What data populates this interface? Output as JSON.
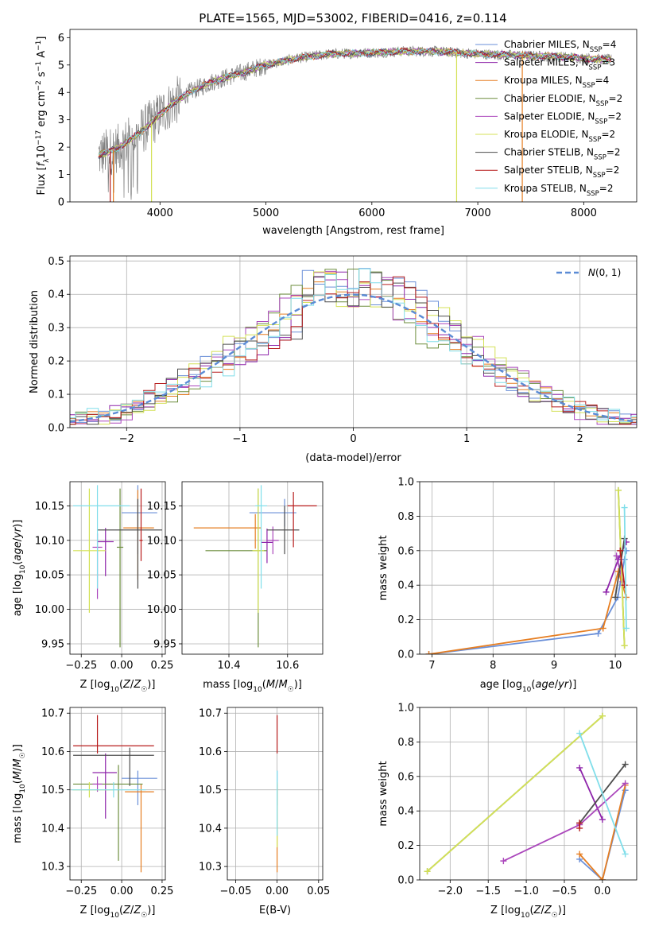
{
  "figure": {
    "title": "PLATE=1565, MJD=53002, FIBERID=0416, z=0.114"
  },
  "models": [
    {
      "name": "Chabrier MILES",
      "nssp": "4",
      "color": "#6a8fd8"
    },
    {
      "name": "Salpeter MILES",
      "nssp": "3",
      "color": "#8e24aa"
    },
    {
      "name": "Kroupa MILES",
      "nssp": "4",
      "color": "#e67e22"
    },
    {
      "name": "Chabrier ELODIE",
      "nssp": "2",
      "color": "#6d8e3e"
    },
    {
      "name": "Salpeter ELODIE",
      "nssp": "2",
      "color": "#ab47bc"
    },
    {
      "name": "Kroupa ELODIE",
      "nssp": "2",
      "color": "#d4e157"
    },
    {
      "name": "Chabrier STELIB",
      "nssp": "2",
      "color": "#4d4d4d"
    },
    {
      "name": "Salpeter STELIB",
      "nssp": "2",
      "color": "#b71c1c"
    },
    {
      "name": "Kroupa STELIB",
      "nssp": "2",
      "color": "#80deea"
    }
  ],
  "chart_data": [
    {
      "id": "spectrum",
      "type": "line",
      "title": "PLATE=1565, MJD=53002, FIBERID=0416, z=0.114",
      "xlabel": "wavelength [Angstrom, rest frame]",
      "ylabel": "Flux [f_λ10^-17 erg cm^-2 s^-1 A^-1]",
      "xlim": [
        3150,
        8500
      ],
      "ylim": [
        0,
        6.3
      ],
      "xticks": [
        4000,
        5000,
        6000,
        7000,
        8000
      ],
      "yticks": [
        0,
        1,
        2,
        3,
        4,
        5,
        6
      ],
      "grid": false,
      "legend": "top-right",
      "data_color": "#808080",
      "data_range": [
        3420,
        8260
      ],
      "model_curve": {
        "x": [
          3420,
          3600,
          3800,
          3950,
          4100,
          4300,
          4500,
          4800,
          5000,
          5300,
          5600,
          6000,
          6300,
          6600,
          7000,
          7400,
          7800,
          8200
        ],
        "y": [
          1.7,
          1.95,
          2.5,
          3.0,
          3.55,
          4.05,
          4.4,
          4.75,
          5.0,
          5.25,
          5.4,
          5.45,
          5.5,
          5.5,
          5.4,
          5.35,
          5.3,
          5.2
        ]
      },
      "notable_drops": [
        {
          "x": 3530,
          "model": "Salpeter STELIB"
        },
        {
          "x": 3560,
          "model": "Kroupa MILES"
        },
        {
          "x": 3920,
          "model": "Kroupa ELODIE"
        },
        {
          "x": 6800,
          "model": "Kroupa ELODIE"
        },
        {
          "x": 7420,
          "model": "Kroupa MILES"
        }
      ]
    },
    {
      "id": "residuals",
      "type": "line",
      "xlabel": "(data-model)/error",
      "ylabel": "Normed distribution",
      "xlim": [
        -2.5,
        2.5
      ],
      "ylim": [
        0,
        0.515
      ],
      "xticks": [
        -2,
        -1,
        0,
        1,
        2
      ],
      "yticks": [
        0.0,
        0.1,
        0.2,
        0.3,
        0.4,
        0.5
      ],
      "grid": true,
      "legend": "top-right",
      "reference": {
        "name": "N(0,1)",
        "color": "#5b8bd5",
        "style": "dashed"
      },
      "bin_width": 0.1
    },
    {
      "id": "age-vs-Z",
      "type": "scatter",
      "xlabel": "Z [log10(Z/Z☉)]",
      "ylabel": "age [log10(age/yr)]",
      "xlim": [
        -0.32,
        0.27
      ],
      "ylim": [
        9.935,
        10.185
      ],
      "xticks": [
        -0.25,
        0.0,
        0.25
      ],
      "xtick_labels": [
        "−0.25",
        "0.00",
        "0.25"
      ],
      "yticks": [
        9.95,
        10.0,
        10.05,
        10.1,
        10.15
      ],
      "grid": true,
      "points": [
        {
          "model": "Chabrier MILES",
          "x": 0.1,
          "xerr": [
            0.1,
            0.12
          ],
          "y": 10.14,
          "yerr": [
            0.06,
            0.04
          ]
        },
        {
          "model": "Salpeter MILES",
          "x": -0.1,
          "xerr": [
            0.05,
            0.05
          ],
          "y": 10.098,
          "yerr": [
            0.05,
            0.02
          ]
        },
        {
          "model": "Kroupa MILES",
          "x": 0.1,
          "xerr": [
            0.09,
            0.1
          ],
          "y": 10.118,
          "yerr": [
            0.075,
            0.055
          ]
        },
        {
          "model": "Chabrier ELODIE",
          "x": -0.01,
          "xerr": [
            0.02,
            0.02
          ],
          "y": 10.09,
          "yerr": [
            0.145,
            0.085
          ]
        },
        {
          "model": "Salpeter ELODIE",
          "x": -0.15,
          "xerr": [
            0.03,
            0.03
          ],
          "y": 10.09,
          "yerr": [
            0.075,
            0.02
          ]
        },
        {
          "model": "Kroupa ELODIE",
          "x": -0.2,
          "xerr": [
            0.1,
            0.1
          ],
          "y": 10.085,
          "yerr": [
            0.09,
            0.09
          ]
        },
        {
          "model": "Chabrier STELIB",
          "x": 0.1,
          "xerr": [
            0.25,
            0.15
          ],
          "y": 10.115,
          "yerr": [
            0.085,
            0.045
          ]
        },
        {
          "model": "Salpeter STELIB",
          "x": 0.12,
          "xerr": [
            0.01,
            0.01
          ],
          "y": 10.1,
          "yerr": [
            0.03,
            0.075
          ]
        },
        {
          "model": "Kroupa STELIB",
          "x": -0.15,
          "xerr": [
            0.15,
            0.2
          ],
          "y": 10.15,
          "yerr": [
            0.12,
            0.03
          ]
        }
      ]
    },
    {
      "id": "age-vs-mass",
      "type": "scatter",
      "xlabel": "mass [log10(M/M☉)]",
      "ylabel": "",
      "xlim": [
        10.24,
        10.72
      ],
      "ylim": [
        9.935,
        10.185
      ],
      "xticks": [
        10.4,
        10.6
      ],
      "yticks": [
        9.95,
        10.0,
        10.05,
        10.1,
        10.15
      ],
      "grid": true,
      "points": [
        {
          "model": "Chabrier MILES",
          "x": 10.59,
          "xerr": [
            0.12,
            0.04
          ],
          "y": 10.14,
          "yerr": [
            0.02,
            0.02
          ]
        },
        {
          "model": "Salpeter MILES",
          "x": 10.53,
          "xerr": [
            0.02,
            0.02
          ],
          "y": 10.097,
          "yerr": [
            0.03,
            0.02
          ]
        },
        {
          "model": "Kroupa MILES",
          "x": 10.49,
          "xerr": [
            0.21,
            0.02
          ],
          "y": 10.118,
          "yerr": [
            0.03,
            0.02
          ]
        },
        {
          "model": "Chabrier ELODIE",
          "x": 10.5,
          "xerr": [
            0.18,
            0.03
          ],
          "y": 10.085,
          "yerr": [
            0.14,
            0.09
          ]
        },
        {
          "model": "Salpeter ELODIE",
          "x": 10.55,
          "xerr": [
            0.02,
            0.02
          ],
          "y": 10.1,
          "yerr": [
            0.02,
            0.02
          ]
        },
        {
          "model": "Kroupa ELODIE",
          "x": 10.5,
          "xerr": [
            0.02,
            0.02
          ],
          "y": 10.085,
          "yerr": [
            0.09,
            0.09
          ]
        },
        {
          "model": "Chabrier STELIB",
          "x": 10.59,
          "xerr": [
            0.06,
            0.05
          ],
          "y": 10.115,
          "yerr": [
            0.035,
            0.035
          ]
        },
        {
          "model": "Salpeter STELIB",
          "x": 10.62,
          "xerr": [
            0.02,
            0.08
          ],
          "y": 10.15,
          "yerr": [
            0.06,
            0.02
          ]
        },
        {
          "model": "Kroupa STELIB",
          "x": 10.51,
          "xerr": [
            0.02,
            0.02
          ],
          "y": 10.15,
          "yerr": [
            0.12,
            0.03
          ]
        }
      ]
    },
    {
      "id": "massweight-vs-age",
      "type": "line",
      "xlabel": "age [log10(age/yr)]",
      "ylabel": "mass weight",
      "xlim": [
        6.8,
        10.35
      ],
      "ylim": [
        0,
        1.0
      ],
      "xticks": [
        7,
        8,
        9,
        10
      ],
      "yticks": [
        0.0,
        0.2,
        0.4,
        0.6,
        0.8,
        1.0
      ],
      "grid": true,
      "series": [
        {
          "model": "Chabrier MILES",
          "x": [
            6.95,
            9.72,
            10.04,
            10.15,
            10.18
          ],
          "y": [
            0.0,
            0.12,
            0.33,
            0.55,
            0.6
          ]
        },
        {
          "model": "Salpeter MILES",
          "x": [
            9.85,
            10.05,
            10.18
          ],
          "y": [
            0.36,
            0.55,
            0.65
          ]
        },
        {
          "model": "Kroupa MILES",
          "x": [
            6.95,
            9.8,
            10.05,
            10.18
          ],
          "y": [
            0.0,
            0.15,
            0.48,
            0.33
          ]
        },
        {
          "model": "Chabrier ELODIE",
          "x": [
            10.05,
            10.15
          ],
          "y": [
            0.95,
            0.05
          ]
        },
        {
          "model": "Salpeter ELODIE",
          "x": [
            10.02,
            10.12
          ],
          "y": [
            0.57,
            0.42
          ]
        },
        {
          "model": "Kroupa ELODIE",
          "x": [
            10.05,
            10.15
          ],
          "y": [
            0.95,
            0.05
          ]
        },
        {
          "model": "Chabrier STELIB",
          "x": [
            10.0,
            10.15
          ],
          "y": [
            0.33,
            0.67
          ]
        },
        {
          "model": "Salpeter STELIB",
          "x": [
            10.08,
            10.15
          ],
          "y": [
            0.6,
            0.4
          ]
        },
        {
          "model": "Kroupa STELIB",
          "x": [
            10.15,
            10.18
          ],
          "y": [
            0.85,
            0.15
          ]
        }
      ]
    },
    {
      "id": "mass-vs-Z",
      "type": "scatter",
      "xlabel": "Z [log10(Z/Z☉)]",
      "ylabel": "mass [log10(M/M☉)]",
      "xlim": [
        -0.32,
        0.27
      ],
      "ylim": [
        10.265,
        10.715
      ],
      "xticks": [
        -0.25,
        0.0,
        0.25
      ],
      "xtick_labels": [
        "−0.25",
        "0.00",
        "0.25"
      ],
      "yticks": [
        10.3,
        10.4,
        10.5,
        10.6,
        10.7
      ],
      "grid": true,
      "points": [
        {
          "model": "Chabrier MILES",
          "x": 0.1,
          "xerr": [
            0.1,
            0.12
          ],
          "y": 10.53,
          "yerr": [
            0.07,
            0.02
          ]
        },
        {
          "model": "Salpeter MILES",
          "x": -0.1,
          "xerr": [
            0.08,
            0.07
          ],
          "y": 10.545,
          "yerr": [
            0.12,
            0.05
          ]
        },
        {
          "model": "Kroupa MILES",
          "x": 0.12,
          "xerr": [
            0.1,
            0.08
          ],
          "y": 10.495,
          "yerr": [
            0.21,
            0.02
          ]
        },
        {
          "model": "Chabrier ELODIE",
          "x": -0.02,
          "xerr": [
            0.28,
            0.15
          ],
          "y": 10.515,
          "yerr": [
            0.2,
            0.05
          ]
        },
        {
          "model": "Salpeter ELODIE",
          "x": -0.15,
          "xerr": [
            0.03,
            0.03
          ],
          "y": 10.515,
          "yerr": [
            0.02,
            0.02
          ]
        },
        {
          "model": "Kroupa ELODIE",
          "x": -0.2,
          "xerr": [
            0.1,
            0.15
          ],
          "y": 10.5,
          "yerr": [
            0.02,
            0.02
          ]
        },
        {
          "model": "Chabrier STELIB",
          "x": 0.05,
          "xerr": [
            0.35,
            0.15
          ],
          "y": 10.59,
          "yerr": [
            0.08,
            0.02
          ]
        },
        {
          "model": "Salpeter STELIB",
          "x": -0.15,
          "xerr": [
            0.15,
            0.35
          ],
          "y": 10.615,
          "yerr": [
            0.02,
            0.08
          ]
        },
        {
          "model": "Kroupa STELIB",
          "x": -0.05,
          "xerr": [
            0.26,
            0.2
          ],
          "y": 10.5,
          "yerr": [
            0.02,
            0.02
          ]
        }
      ]
    },
    {
      "id": "mass-vs-EBV",
      "type": "scatter",
      "xlabel": "E(B-V)",
      "ylabel": "",
      "xlim": [
        -0.06,
        0.055
      ],
      "ylim": [
        10.265,
        10.715
      ],
      "xticks": [
        -0.05,
        0.0,
        0.05
      ],
      "xtick_labels": [
        "−0.05",
        "0.00",
        "0.05"
      ],
      "yticks": [
        10.3,
        10.4,
        10.5,
        10.6,
        10.7
      ],
      "grid": true,
      "points": [
        {
          "model": "Chabrier MILES",
          "x": 0.0,
          "xerr": [
            0,
            0
          ],
          "y": 10.53,
          "yerr": [
            0.07,
            0.02
          ]
        },
        {
          "model": "Kroupa MILES",
          "x": 0.0,
          "xerr": [
            0,
            0
          ],
          "y": 10.495,
          "yerr": [
            0.21,
            0.02
          ]
        },
        {
          "model": "Kroupa ELODIE",
          "x": 0.0,
          "xerr": [
            0,
            0
          ],
          "y": 10.5,
          "yerr": [
            0.15,
            0.02
          ]
        },
        {
          "model": "Salpeter STELIB",
          "x": 0.0,
          "xerr": [
            0,
            0
          ],
          "y": 10.615,
          "yerr": [
            0.02,
            0.08
          ]
        },
        {
          "model": "Kroupa STELIB",
          "x": 0.0,
          "xerr": [
            0,
            0
          ],
          "y": 10.5,
          "yerr": [
            0.12,
            0.05
          ]
        }
      ]
    },
    {
      "id": "massweight-vs-Z",
      "type": "line",
      "xlabel": "Z [log10(Z/Z☉)]",
      "ylabel": "mass weight",
      "xlim": [
        -2.4,
        0.45
      ],
      "ylim": [
        0,
        1.0
      ],
      "xticks": [
        -2.0,
        -1.5,
        -1.0,
        -0.5,
        0.0
      ],
      "xtick_labels": [
        "−2.0",
        "−1.5",
        "−1.0",
        "−0.5",
        "0.0"
      ],
      "yticks": [
        0.0,
        0.2,
        0.4,
        0.6,
        0.8,
        1.0
      ],
      "grid": true,
      "series": [
        {
          "model": "Chabrier MILES",
          "x": [
            -0.3,
            0.0,
            0.3
          ],
          "y": [
            0.12,
            0.0,
            0.52
          ]
        },
        {
          "model": "Salpeter MILES",
          "x": [
            -0.3,
            0.0
          ],
          "y": [
            0.65,
            0.35
          ]
        },
        {
          "model": "Kroupa MILES",
          "x": [
            -0.3,
            0.0,
            0.3
          ],
          "y": [
            0.15,
            0.0,
            0.55
          ]
        },
        {
          "model": "Chabrier ELODIE",
          "x": [
            -2.3,
            0.0
          ],
          "y": [
            0.05,
            0.95
          ]
        },
        {
          "model": "Salpeter ELODIE",
          "x": [
            -1.3,
            -0.3,
            0.3
          ],
          "y": [
            0.11,
            0.32,
            0.56
          ]
        },
        {
          "model": "Kroupa ELODIE",
          "x": [
            -2.3,
            0.0
          ],
          "y": [
            0.05,
            0.95
          ]
        },
        {
          "model": "Chabrier STELIB",
          "x": [
            -0.3,
            0.3
          ],
          "y": [
            0.33,
            0.67
          ]
        },
        {
          "model": "Salpeter STELIB",
          "x": [
            -0.3,
            -0.3
          ],
          "y": [
            0.33,
            0.3
          ]
        },
        {
          "model": "Kroupa STELIB",
          "x": [
            -0.3,
            0.3
          ],
          "y": [
            0.85,
            0.15
          ]
        }
      ]
    }
  ]
}
